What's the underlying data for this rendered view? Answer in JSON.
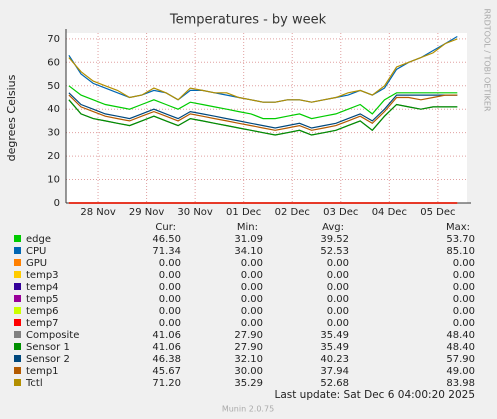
{
  "chart_data": {
    "type": "line",
    "title": "Temperatures - by week",
    "ylabel": "degrees Celsius",
    "side_label": "RRDTOOL / TOBI OETIKER",
    "footer": "Last update: Sat Dec  6 04:00:20 2025",
    "credit": "Munin 2.0.75",
    "columns": [
      "Cur:",
      "Min:",
      "Avg:",
      "Max:"
    ],
    "xlim": [
      -0.66,
      7.6
    ],
    "xticks": [
      {
        "value": 0,
        "label": "28 Nov"
      },
      {
        "value": 1,
        "label": "29 Nov"
      },
      {
        "value": 2,
        "label": "30 Nov"
      },
      {
        "value": 3,
        "label": "01 Dec"
      },
      {
        "value": 4,
        "label": "02 Dec"
      },
      {
        "value": 5,
        "label": "03 Dec"
      },
      {
        "value": 6,
        "label": "04 Dec"
      },
      {
        "value": 7,
        "label": "05 Dec"
      }
    ],
    "ylim": [
      0,
      72.5
    ],
    "yticks": [
      0,
      10,
      20,
      30,
      40,
      50,
      60,
      70
    ],
    "grid": true,
    "x": [
      -0.6,
      -0.35,
      -0.1,
      0.15,
      0.4,
      0.65,
      0.9,
      1.15,
      1.4,
      1.65,
      1.9,
      2.15,
      2.4,
      2.65,
      2.9,
      3.15,
      3.4,
      3.65,
      3.9,
      4.15,
      4.4,
      4.65,
      4.9,
      5.15,
      5.4,
      5.65,
      5.9,
      6.15,
      6.4,
      6.65,
      6.9,
      7.15,
      7.4
    ],
    "series": [
      {
        "name": "edge",
        "color": "#00cc00",
        "cur": "46.50",
        "min": "31.09",
        "avg": "39.52",
        "max": "53.70",
        "values": [
          50,
          46,
          44,
          42,
          41,
          40,
          42,
          44,
          42,
          40,
          43,
          42,
          41,
          40,
          39,
          38,
          36,
          36,
          37,
          38,
          36,
          37,
          38,
          40,
          42,
          38,
          44,
          47,
          47,
          47,
          47,
          47,
          47
        ]
      },
      {
        "name": "CPU",
        "color": "#0066b3",
        "cur": "71.34",
        "min": "34.10",
        "avg": "52.53",
        "max": "85.10",
        "values": [
          63,
          55,
          51,
          49,
          47,
          45,
          46,
          48,
          47,
          44,
          48,
          48,
          47,
          46,
          45,
          44,
          43,
          43,
          44,
          44,
          43,
          44,
          45,
          46,
          48,
          46,
          49,
          57,
          60,
          62,
          65,
          68,
          71
        ]
      },
      {
        "name": "GPU",
        "color": "#ff8000",
        "cur": "0.00",
        "min": "0.00",
        "avg": "0.00",
        "max": "0.00",
        "values": [
          0,
          0,
          0,
          0,
          0,
          0,
          0,
          0,
          0,
          0,
          0,
          0,
          0,
          0,
          0,
          0,
          0,
          0,
          0,
          0,
          0,
          0,
          0,
          0,
          0,
          0,
          0,
          0,
          0,
          0,
          0,
          0,
          0
        ]
      },
      {
        "name": "temp3",
        "color": "#ffcc00",
        "cur": "0.00",
        "min": "0.00",
        "avg": "0.00",
        "max": "0.00",
        "values": [
          0,
          0,
          0,
          0,
          0,
          0,
          0,
          0,
          0,
          0,
          0,
          0,
          0,
          0,
          0,
          0,
          0,
          0,
          0,
          0,
          0,
          0,
          0,
          0,
          0,
          0,
          0,
          0,
          0,
          0,
          0,
          0,
          0
        ]
      },
      {
        "name": "temp4",
        "color": "#330099",
        "cur": "0.00",
        "min": "0.00",
        "avg": "0.00",
        "max": "0.00",
        "values": [
          0,
          0,
          0,
          0,
          0,
          0,
          0,
          0,
          0,
          0,
          0,
          0,
          0,
          0,
          0,
          0,
          0,
          0,
          0,
          0,
          0,
          0,
          0,
          0,
          0,
          0,
          0,
          0,
          0,
          0,
          0,
          0,
          0
        ]
      },
      {
        "name": "temp5",
        "color": "#990099",
        "cur": "0.00",
        "min": "0.00",
        "avg": "0.00",
        "max": "0.00",
        "values": [
          0,
          0,
          0,
          0,
          0,
          0,
          0,
          0,
          0,
          0,
          0,
          0,
          0,
          0,
          0,
          0,
          0,
          0,
          0,
          0,
          0,
          0,
          0,
          0,
          0,
          0,
          0,
          0,
          0,
          0,
          0,
          0,
          0
        ]
      },
      {
        "name": "temp6",
        "color": "#ccff00",
        "cur": "0.00",
        "min": "0.00",
        "avg": "0.00",
        "max": "0.00",
        "values": [
          0,
          0,
          0,
          0,
          0,
          0,
          0,
          0,
          0,
          0,
          0,
          0,
          0,
          0,
          0,
          0,
          0,
          0,
          0,
          0,
          0,
          0,
          0,
          0,
          0,
          0,
          0,
          0,
          0,
          0,
          0,
          0,
          0
        ]
      },
      {
        "name": "temp7",
        "color": "#ff0000",
        "cur": "0.00",
        "min": "0.00",
        "avg": "0.00",
        "max": "0.00",
        "values": [
          0,
          0,
          0,
          0,
          0,
          0,
          0,
          0,
          0,
          0,
          0,
          0,
          0,
          0,
          0,
          0,
          0,
          0,
          0,
          0,
          0,
          0,
          0,
          0,
          0,
          0,
          0,
          0,
          0,
          0,
          0,
          0,
          0
        ]
      },
      {
        "name": "Composite",
        "color": "#808080",
        "cur": "41.06",
        "min": "27.90",
        "avg": "35.49",
        "max": "48.40",
        "values": [
          44,
          38,
          36,
          35,
          34,
          33,
          35,
          37,
          35,
          33,
          36,
          35,
          34,
          33,
          32,
          31,
          30,
          29,
          30,
          31,
          29,
          30,
          31,
          33,
          35,
          31,
          37,
          42,
          41,
          40,
          41,
          41,
          41
        ]
      },
      {
        "name": "Sensor 1",
        "color": "#008f00",
        "cur": "41.06",
        "min": "27.90",
        "avg": "35.49",
        "max": "48.40",
        "values": [
          44,
          38,
          36,
          35,
          34,
          33,
          35,
          37,
          35,
          33,
          36,
          35,
          34,
          33,
          32,
          31,
          30,
          29,
          30,
          31,
          29,
          30,
          31,
          33,
          35,
          31,
          37,
          42,
          41,
          40,
          41,
          41,
          41
        ]
      },
      {
        "name": "Sensor 2",
        "color": "#00487d",
        "cur": "46.38",
        "min": "32.10",
        "avg": "40.23",
        "max": "57.90",
        "values": [
          47,
          42,
          40,
          38,
          37,
          36,
          38,
          40,
          38,
          36,
          39,
          38,
          37,
          36,
          35,
          34,
          33,
          32,
          33,
          34,
          32,
          33,
          34,
          36,
          38,
          35,
          40,
          46,
          46,
          46,
          46,
          46,
          46
        ]
      },
      {
        "name": "temp1",
        "color": "#b35a00",
        "cur": "45.67",
        "min": "30.00",
        "avg": "37.94",
        "max": "49.00",
        "values": [
          46,
          41,
          39,
          37,
          36,
          35,
          37,
          39,
          37,
          35,
          38,
          37,
          36,
          35,
          34,
          33,
          32,
          31,
          32,
          33,
          31,
          32,
          33,
          35,
          37,
          34,
          39,
          45,
          45,
          44,
          45,
          46,
          46
        ]
      },
      {
        "name": "Tctl",
        "color": "#b38f00",
        "cur": "71.20",
        "min": "35.29",
        "avg": "52.68",
        "max": "83.98",
        "values": [
          62,
          56,
          52,
          50,
          48,
          45,
          46,
          49,
          47,
          44,
          49,
          48,
          47,
          47,
          45,
          44,
          43,
          43,
          44,
          44,
          43,
          44,
          45,
          47,
          48,
          46,
          50,
          58,
          60,
          62,
          64,
          68,
          70
        ]
      }
    ]
  }
}
